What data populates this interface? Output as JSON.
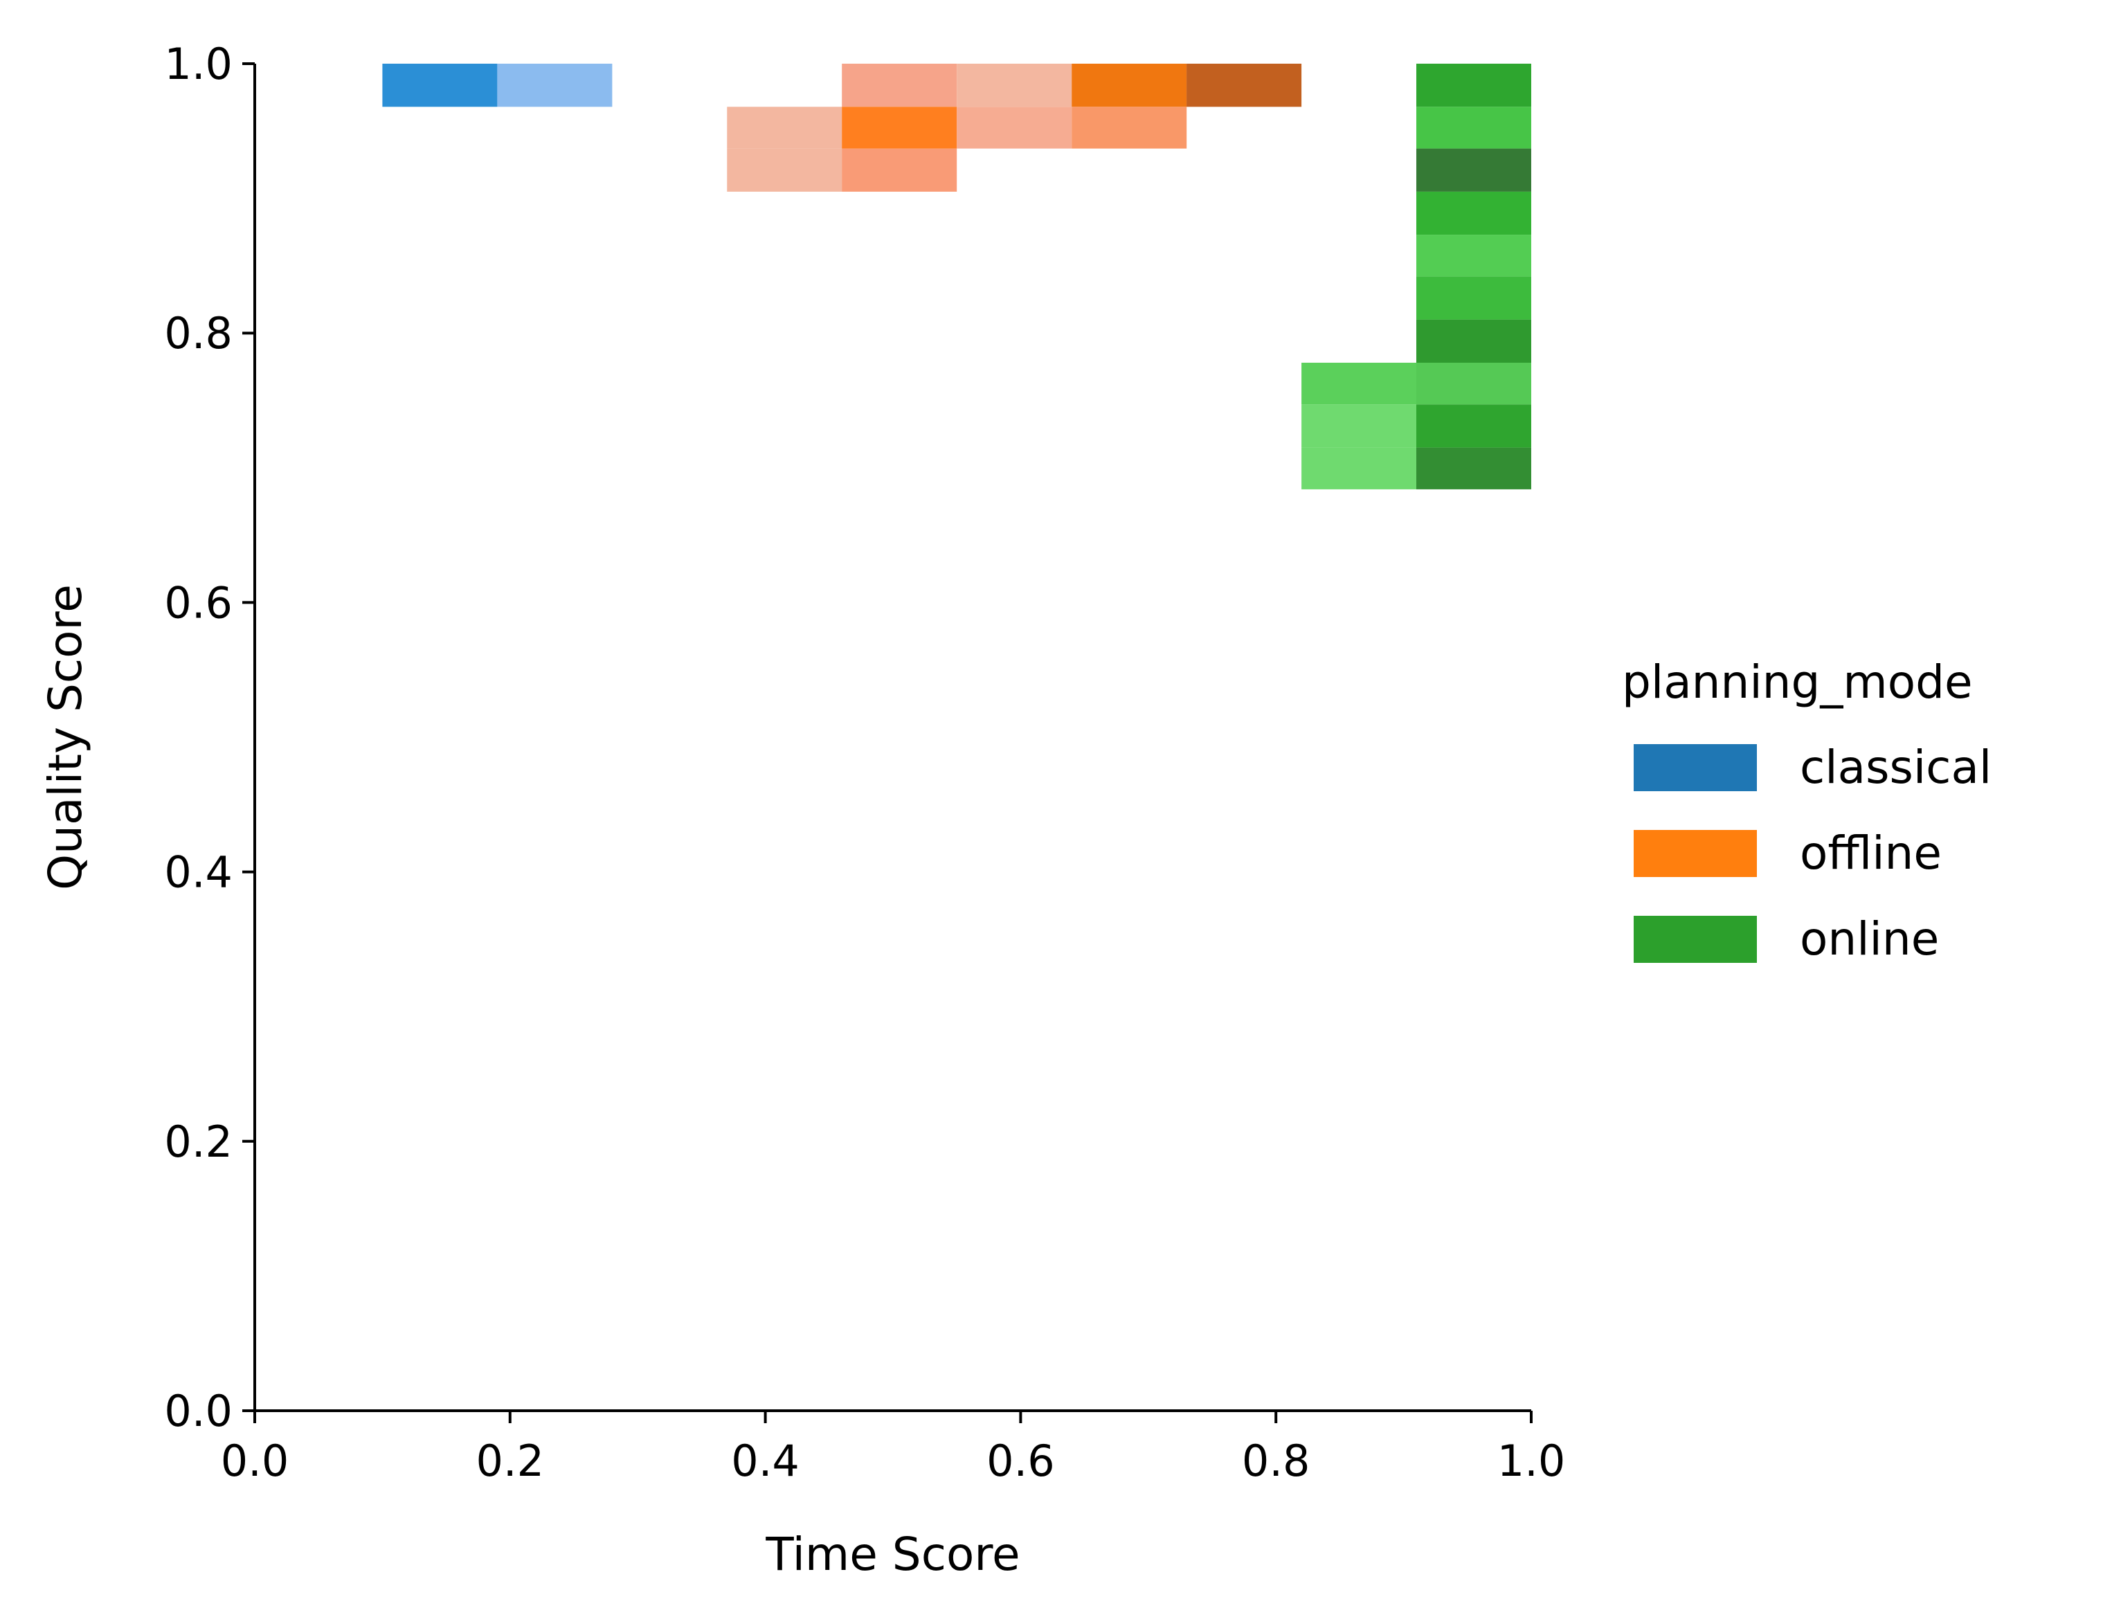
{
  "chart_data": {
    "type": "heatmap",
    "title": "",
    "xlabel": "Time Score",
    "ylabel": "Quality Score",
    "xlim": [
      0.0,
      1.0
    ],
    "ylim": [
      0.0,
      1.0
    ],
    "xticks": [
      "0.0",
      "0.2",
      "0.4",
      "0.6",
      "0.8",
      "1.0"
    ],
    "yticks": [
      "0.0",
      "0.2",
      "0.4",
      "0.6",
      "0.8",
      "1.0"
    ],
    "grid": false,
    "legend": {
      "title": "planning_mode",
      "placement": "center-right outside",
      "entries": [
        {
          "name": "classical",
          "color": "#1f77b4"
        },
        {
          "name": "offline",
          "color": "#ff7f0e"
        },
        {
          "name": "online",
          "color": "#2ca02c"
        }
      ]
    },
    "bin_width_x": 0.09,
    "bin_height_y": 0.0316,
    "series": [
      {
        "name": "classical",
        "cells": [
          {
            "x": [
              0.1,
              0.19
            ],
            "y": [
              0.968,
              1.0
            ],
            "color": "#2b8fd6"
          },
          {
            "x": [
              0.19,
              0.28
            ],
            "y": [
              0.968,
              1.0
            ],
            "color": "#8bbbef"
          }
        ]
      },
      {
        "name": "offline",
        "cells": [
          {
            "x": [
              0.46,
              0.55
            ],
            "y": [
              0.968,
              1.0
            ],
            "color": "#f6a48a"
          },
          {
            "x": [
              0.55,
              0.64
            ],
            "y": [
              0.968,
              1.0
            ],
            "color": "#f3b7a0"
          },
          {
            "x": [
              0.64,
              0.73
            ],
            "y": [
              0.968,
              1.0
            ],
            "color": "#f07710"
          },
          {
            "x": [
              0.73,
              0.82
            ],
            "y": [
              0.968,
              1.0
            ],
            "color": "#c2601f"
          },
          {
            "x": [
              0.37,
              0.46
            ],
            "y": [
              0.937,
              0.968
            ],
            "color": "#f3b7a0"
          },
          {
            "x": [
              0.46,
              0.55
            ],
            "y": [
              0.937,
              0.968
            ],
            "color": "#ff7f1f"
          },
          {
            "x": [
              0.55,
              0.64
            ],
            "y": [
              0.937,
              0.968
            ],
            "color": "#f6ac92"
          },
          {
            "x": [
              0.64,
              0.73
            ],
            "y": [
              0.937,
              0.968
            ],
            "color": "#f99868"
          },
          {
            "x": [
              0.37,
              0.46
            ],
            "y": [
              0.905,
              0.937
            ],
            "color": "#f3b7a0"
          },
          {
            "x": [
              0.46,
              0.55
            ],
            "y": [
              0.905,
              0.937
            ],
            "color": "#f99b76"
          }
        ]
      },
      {
        "name": "online",
        "cells": [
          {
            "x": [
              0.91,
              1.0
            ],
            "y": [
              0.968,
              1.0
            ],
            "color": "#2ea62f"
          },
          {
            "x": [
              0.91,
              1.0
            ],
            "y": [
              0.937,
              0.968
            ],
            "color": "#47c547"
          },
          {
            "x": [
              0.91,
              1.0
            ],
            "y": [
              0.905,
              0.937
            ],
            "color": "#357a35"
          },
          {
            "x": [
              0.91,
              1.0
            ],
            "y": [
              0.873,
              0.905
            ],
            "color": "#33b233"
          },
          {
            "x": [
              0.91,
              1.0
            ],
            "y": [
              0.842,
              0.873
            ],
            "color": "#53cd53"
          },
          {
            "x": [
              0.91,
              1.0
            ],
            "y": [
              0.81,
              0.842
            ],
            "color": "#3dbb3d"
          },
          {
            "x": [
              0.91,
              1.0
            ],
            "y": [
              0.778,
              0.81
            ],
            "color": "#2f9a2f"
          },
          {
            "x": [
              0.82,
              0.91
            ],
            "y": [
              0.747,
              0.778
            ],
            "color": "#5bd05b"
          },
          {
            "x": [
              0.91,
              1.0
            ],
            "y": [
              0.747,
              0.778
            ],
            "color": "#55c955"
          },
          {
            "x": [
              0.82,
              0.91
            ],
            "y": [
              0.715,
              0.747
            ],
            "color": "#6fda6f"
          },
          {
            "x": [
              0.91,
              1.0
            ],
            "y": [
              0.715,
              0.747
            ],
            "color": "#2fa52f"
          },
          {
            "x": [
              0.82,
              0.91
            ],
            "y": [
              0.684,
              0.715
            ],
            "color": "#6fda6f"
          },
          {
            "x": [
              0.91,
              1.0
            ],
            "y": [
              0.684,
              0.715
            ],
            "color": "#338e33"
          }
        ]
      }
    ]
  }
}
